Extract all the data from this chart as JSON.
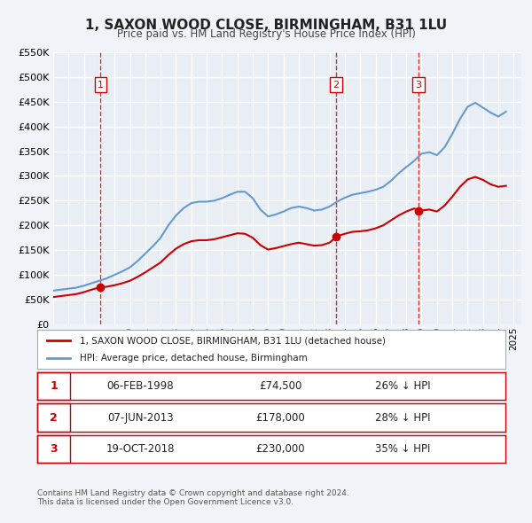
{
  "title": "1, SAXON WOOD CLOSE, BIRMINGHAM, B31 1LU",
  "subtitle": "Price paid vs. HM Land Registry's House Price Index (HPI)",
  "bg_color": "#f0f4f8",
  "plot_bg_color": "#e8eef4",
  "grid_color": "#ffffff",
  "red_line_color": "#cc0000",
  "blue_line_color": "#6699cc",
  "ylabel": "£",
  "ylim": [
    0,
    550000
  ],
  "yticks": [
    0,
    50000,
    100000,
    150000,
    200000,
    250000,
    300000,
    350000,
    400000,
    450000,
    500000,
    550000
  ],
  "ytick_labels": [
    "£0",
    "£50K",
    "£100K",
    "£150K",
    "£200K",
    "£250K",
    "£300K",
    "£350K",
    "£400K",
    "£450K",
    "£500K",
    "£550K"
  ],
  "xmin": 1995.0,
  "xmax": 2025.5,
  "sale_dates": [
    1998.09,
    2013.43,
    2018.8
  ],
  "sale_prices": [
    74500,
    178000,
    230000
  ],
  "sale_labels": [
    "1",
    "2",
    "3"
  ],
  "legend_label_red": "1, SAXON WOOD CLOSE, BIRMINGHAM, B31 1LU (detached house)",
  "legend_label_blue": "HPI: Average price, detached house, Birmingham",
  "table_rows": [
    [
      "1",
      "06-FEB-1998",
      "£74,500",
      "26% ↓ HPI"
    ],
    [
      "2",
      "07-JUN-2013",
      "£178,000",
      "28% ↓ HPI"
    ],
    [
      "3",
      "19-OCT-2018",
      "£230,000",
      "35% ↓ HPI"
    ]
  ],
  "footer": "Contains HM Land Registry data © Crown copyright and database right 2024.\nThis data is licensed under the Open Government Licence v3.0.",
  "hpi_x": [
    1995.0,
    1995.5,
    1996.0,
    1996.5,
    1997.0,
    1997.5,
    1998.0,
    1998.5,
    1999.0,
    1999.5,
    2000.0,
    2000.5,
    2001.0,
    2001.5,
    2002.0,
    2002.5,
    2003.0,
    2003.5,
    2004.0,
    2004.5,
    2005.0,
    2005.5,
    2006.0,
    2006.5,
    2007.0,
    2007.5,
    2008.0,
    2008.5,
    2009.0,
    2009.5,
    2010.0,
    2010.5,
    2011.0,
    2011.5,
    2012.0,
    2012.5,
    2013.0,
    2013.5,
    2014.0,
    2014.5,
    2015.0,
    2015.5,
    2016.0,
    2016.5,
    2017.0,
    2017.5,
    2018.0,
    2018.5,
    2019.0,
    2019.5,
    2020.0,
    2020.5,
    2021.0,
    2021.5,
    2022.0,
    2022.5,
    2023.0,
    2023.5,
    2024.0,
    2024.5
  ],
  "hpi_y": [
    68000,
    70000,
    72000,
    74000,
    78000,
    83000,
    88000,
    93000,
    100000,
    107000,
    115000,
    128000,
    143000,
    158000,
    175000,
    200000,
    220000,
    235000,
    245000,
    248000,
    248000,
    250000,
    255000,
    262000,
    268000,
    268000,
    255000,
    232000,
    218000,
    222000,
    228000,
    235000,
    238000,
    235000,
    230000,
    232000,
    238000,
    248000,
    256000,
    262000,
    265000,
    268000,
    272000,
    278000,
    290000,
    305000,
    318000,
    330000,
    345000,
    348000,
    342000,
    358000,
    385000,
    415000,
    440000,
    448000,
    438000,
    428000,
    420000,
    430000
  ],
  "red_x": [
    1995.0,
    1995.5,
    1996.0,
    1996.5,
    1997.0,
    1997.5,
    1998.0,
    1998.5,
    1999.0,
    1999.5,
    2000.0,
    2000.5,
    2001.0,
    2001.5,
    2002.0,
    2002.5,
    2003.0,
    2003.5,
    2004.0,
    2004.5,
    2005.0,
    2005.5,
    2006.0,
    2006.5,
    2007.0,
    2007.5,
    2008.0,
    2008.5,
    2009.0,
    2009.5,
    2010.0,
    2010.5,
    2011.0,
    2011.5,
    2012.0,
    2012.5,
    2013.0,
    2013.5,
    2014.0,
    2014.5,
    2015.0,
    2015.5,
    2016.0,
    2016.5,
    2017.0,
    2017.5,
    2018.0,
    2018.5,
    2019.0,
    2019.5,
    2020.0,
    2020.5,
    2021.0,
    2021.5,
    2022.0,
    2022.5,
    2023.0,
    2023.5,
    2024.0,
    2024.5
  ],
  "red_y": [
    55000,
    57000,
    59000,
    61000,
    65000,
    70000,
    74500,
    76000,
    79000,
    83000,
    88000,
    96000,
    105000,
    115000,
    125000,
    140000,
    153000,
    162000,
    168000,
    170000,
    170000,
    172000,
    176000,
    180000,
    184000,
    183000,
    175000,
    160000,
    151000,
    154000,
    158000,
    162000,
    165000,
    162000,
    159000,
    160000,
    165000,
    178000,
    183000,
    187000,
    188000,
    190000,
    194000,
    200000,
    210000,
    220000,
    228000,
    234000,
    230000,
    232000,
    228000,
    240000,
    258000,
    278000,
    293000,
    298000,
    292000,
    283000,
    278000,
    280000
  ]
}
